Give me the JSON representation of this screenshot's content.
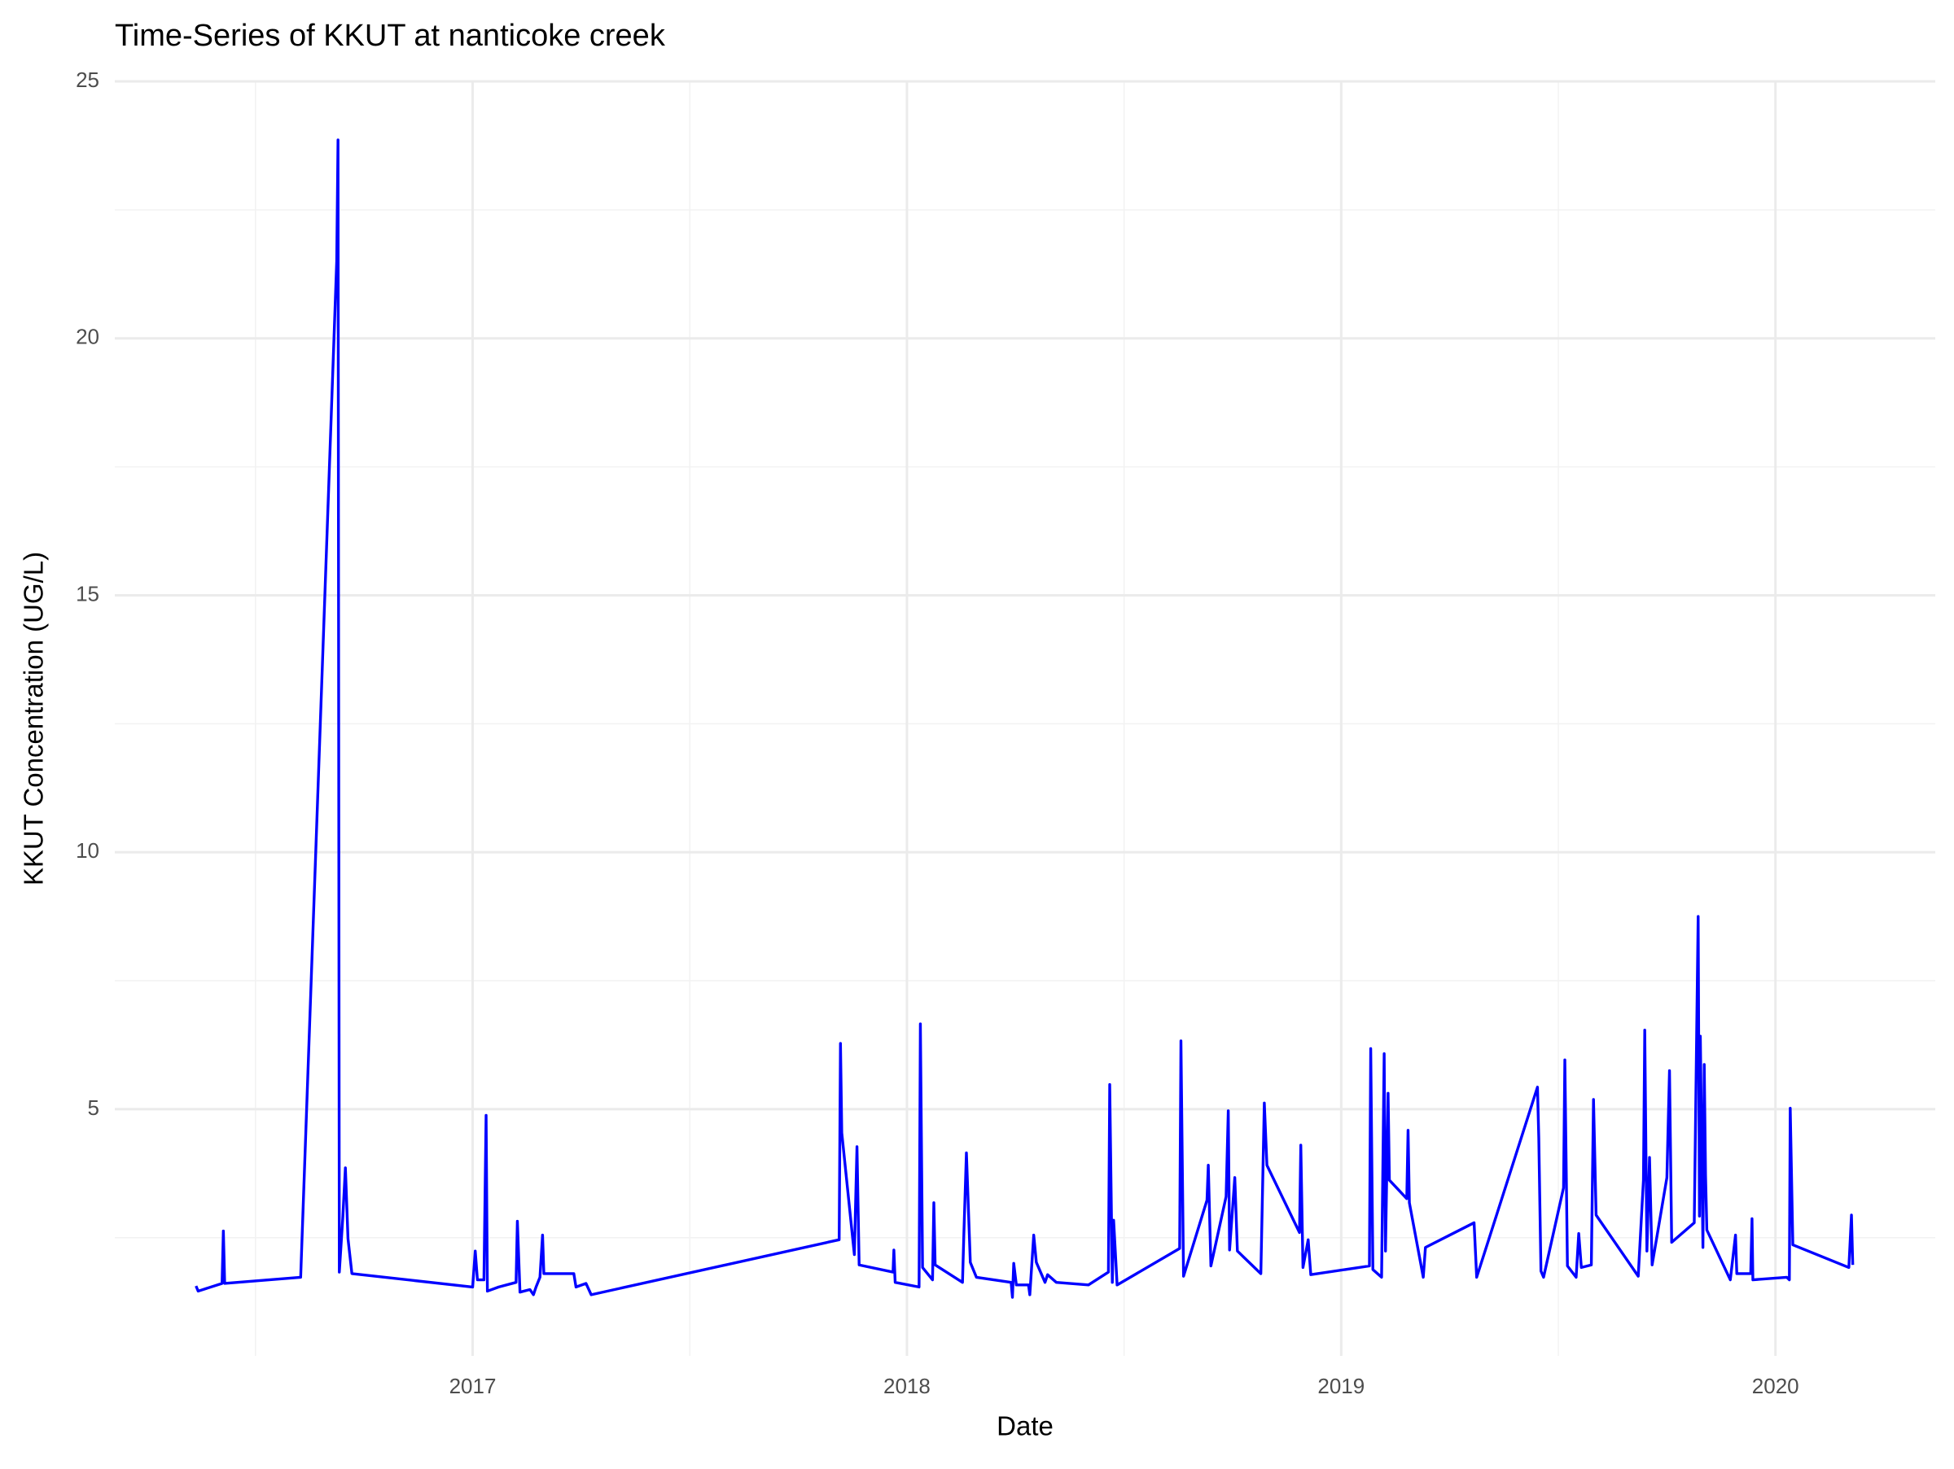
{
  "chart_data": {
    "type": "line",
    "title": "Time-Series of KKUT at nanticoke creek",
    "x_label": "Date",
    "y_label": "KKUT Concentration (UG/L)",
    "color": "#0000ff",
    "grid": true,
    "xlim": [
      2016.176,
      2020.368
    ],
    "xticks": [
      2017,
      2018,
      2019,
      2020
    ],
    "ylim": [
      0.2,
      25
    ],
    "yticks": [
      5,
      10,
      15,
      20,
      25
    ],
    "x": [
      2016.363,
      2016.368,
      2016.423,
      2016.426,
      2016.429,
      2016.604,
      2016.687,
      2016.69,
      2016.693,
      2016.701,
      2016.707,
      2016.713,
      2016.722,
      2017.0,
      2017.006,
      2017.011,
      2017.026,
      2017.031,
      2017.034,
      2017.06,
      2017.1,
      2017.103,
      2017.109,
      2017.132,
      2017.14,
      2017.146,
      2017.155,
      2017.161,
      2017.164,
      2017.233,
      2017.238,
      2017.261,
      2017.273,
      2017.844,
      2017.847,
      2017.85,
      2017.879,
      2017.885,
      2017.89,
      2017.968,
      2017.97,
      2017.973,
      2018.028,
      2018.031,
      2018.036,
      2018.059,
      2018.062,
      2018.065,
      2018.128,
      2018.131,
      2018.137,
      2018.146,
      2018.16,
      2018.24,
      2018.243,
      2018.246,
      2018.252,
      2018.28,
      2018.283,
      2018.292,
      2018.298,
      2018.318,
      2018.324,
      2018.344,
      2018.418,
      2018.464,
      2018.467,
      2018.473,
      2018.476,
      2018.484,
      2018.628,
      2018.631,
      2018.637,
      2018.691,
      2018.694,
      2018.7,
      2018.735,
      2018.74,
      2018.743,
      2018.755,
      2018.761,
      2018.815,
      2018.823,
      2018.829,
      2018.904,
      2018.907,
      2018.912,
      2018.924,
      2018.93,
      2019.065,
      2019.068,
      2019.073,
      2019.093,
      2019.099,
      2019.102,
      2019.108,
      2019.111,
      2019.151,
      2019.154,
      2019.157,
      2019.189,
      2019.194,
      2019.306,
      2019.312,
      2019.452,
      2019.455,
      2019.46,
      2019.466,
      2019.512,
      2019.515,
      2019.521,
      2019.541,
      2019.547,
      2019.553,
      2019.576,
      2019.581,
      2019.587,
      2019.684,
      2019.696,
      2019.699,
      2019.704,
      2019.71,
      2019.716,
      2019.75,
      2019.756,
      2019.761,
      2019.813,
      2019.822,
      2019.825,
      2019.827,
      2019.833,
      2019.836,
      2019.839,
      2019.842,
      2019.896,
      2019.908,
      2019.911,
      2019.943,
      2019.946,
      2019.948,
      2020.026,
      2020.032,
      2020.034,
      2020.04,
      2020.169,
      2020.175,
      2020.178
    ],
    "values": [
      1.56,
      1.46,
      1.61,
      2.63,
      1.61,
      1.73,
      21.5,
      23.86,
      1.83,
      2.89,
      3.86,
      2.48,
      1.8,
      1.54,
      2.24,
      1.68,
      1.68,
      4.88,
      1.46,
      1.54,
      1.63,
      2.82,
      1.44,
      1.49,
      1.39,
      1.54,
      1.73,
      2.55,
      1.8,
      1.8,
      1.54,
      1.61,
      1.39,
      2.46,
      6.28,
      4.54,
      2.17,
      4.27,
      1.97,
      1.83,
      2.26,
      1.63,
      1.54,
      6.66,
      1.92,
      1.68,
      3.18,
      1.97,
      1.63,
      2.53,
      4.15,
      2.02,
      1.73,
      1.63,
      1.34,
      2.0,
      1.58,
      1.58,
      1.39,
      2.55,
      2.02,
      1.63,
      1.78,
      1.63,
      1.58,
      1.83,
      5.48,
      1.63,
      2.84,
      1.58,
      2.29,
      6.33,
      1.75,
      3.23,
      3.91,
      1.95,
      3.3,
      4.97,
      2.26,
      3.67,
      2.24,
      1.8,
      5.12,
      3.91,
      2.6,
      4.3,
      1.92,
      2.46,
      1.78,
      1.95,
      6.18,
      1.88,
      1.73,
      6.08,
      2.24,
      5.31,
      3.62,
      3.26,
      4.59,
      3.18,
      1.73,
      2.31,
      2.79,
      1.73,
      5.43,
      4.44,
      1.85,
      1.73,
      3.47,
      5.96,
      1.95,
      1.73,
      2.58,
      1.92,
      1.97,
      5.19,
      2.94,
      1.75,
      3.62,
      6.54,
      2.24,
      4.06,
      1.97,
      3.67,
      5.75,
      2.41,
      2.79,
      8.75,
      2.92,
      6.42,
      2.31,
      5.87,
      3.72,
      2.65,
      1.68,
      2.55,
      1.8,
      1.8,
      2.87,
      1.68,
      1.73,
      1.68,
      5.02,
      2.36,
      1.92,
      2.94,
      1.97
    ]
  }
}
